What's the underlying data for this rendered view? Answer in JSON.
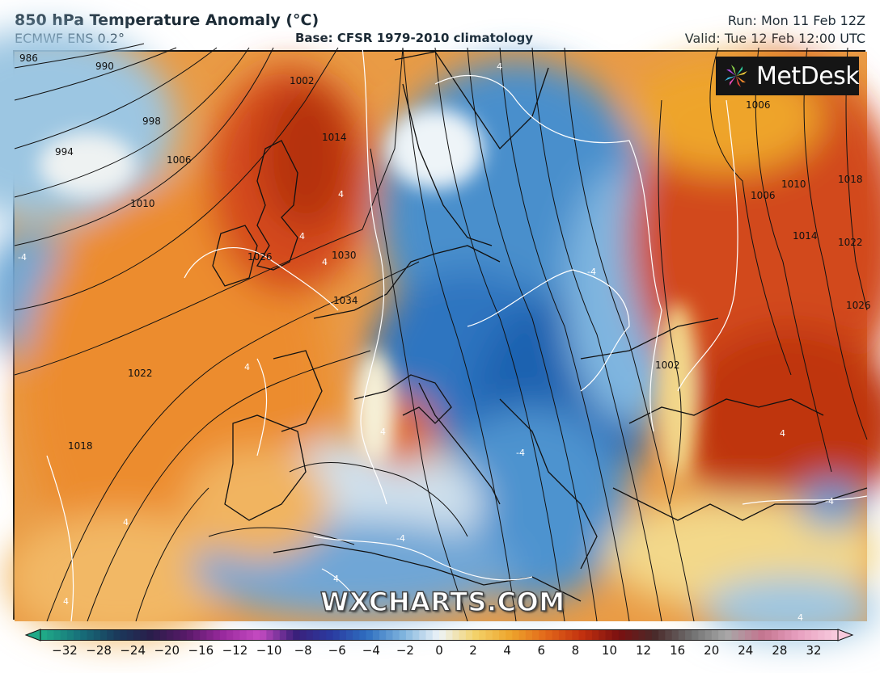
{
  "header": {
    "title": "850 hPa Temperature Anomaly (°C)",
    "subtitle": "ECMWF ENS 0.2°",
    "base": "Base: CFSR 1979-2010 climatology",
    "run": "Run: Mon 11 Feb 12Z",
    "valid": "Valid: Tue 12 Feb 12:00 UTC"
  },
  "logo": {
    "text": "MetDesk",
    "icon": "pinwheel-logo-icon"
  },
  "watermark": "WXCHARTS.COM",
  "colorbar": {
    "ticks": [
      "−32",
      "−28",
      "−24",
      "−20",
      "−16",
      "−12",
      "−10",
      "−8",
      "−6",
      "−4",
      "−2",
      "0",
      "2",
      "4",
      "6",
      "8",
      "10",
      "12",
      "16",
      "20",
      "24",
      "28",
      "32"
    ],
    "colors": [
      "#1fa987",
      "#17707a",
      "#1a3b5c",
      "#2a1d4a",
      "#5a1a6a",
      "#9a2a9e",
      "#c64bc2",
      "#3a1f7a",
      "#2a3aa0",
      "#2f6fc0",
      "#7fb4de",
      "#eef4f8",
      "#f3d26a",
      "#eea42b",
      "#e2661a",
      "#c1300f",
      "#7a1010",
      "#4a2a2a",
      "#6e6e6e",
      "#a8a8a8",
      "#c4748f",
      "#e8a0c0",
      "#f7c9dc"
    ]
  },
  "isobar_labels": [
    "986",
    "990",
    "998",
    "994",
    "1006",
    "1010",
    "1002",
    "1014",
    "1026",
    "1030",
    "1034",
    "1022",
    "1018",
    "1006",
    "1010",
    "1018",
    "1014",
    "1022",
    "1026",
    "1006",
    "1002"
  ],
  "anomaly_labels": [
    "4",
    "-4",
    "4",
    "4",
    "-4",
    "4",
    "4",
    "4",
    "-4",
    "4",
    "4",
    "4",
    "4",
    "-4",
    "4",
    "-4"
  ]
}
